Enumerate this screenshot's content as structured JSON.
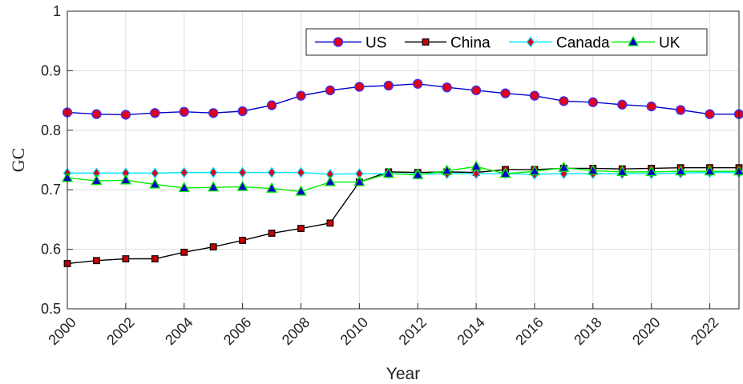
{
  "chart_data": {
    "type": "line",
    "xlabel": "Year",
    "ylabel": "GC",
    "xlim": [
      2000,
      2023
    ],
    "ylim": [
      0.5,
      1.0
    ],
    "xticks": [
      "2000",
      "2002",
      "2004",
      "2006",
      "2008",
      "2010",
      "2012",
      "2014",
      "2016",
      "2018",
      "2020",
      "2022"
    ],
    "yticks": [
      "0.5",
      "0.6",
      "0.7",
      "0.8",
      "0.9",
      "1"
    ],
    "grid": true,
    "legend_position": "top-right",
    "x": [
      2000,
      2001,
      2002,
      2003,
      2004,
      2005,
      2006,
      2007,
      2008,
      2009,
      2010,
      2011,
      2012,
      2013,
      2014,
      2015,
      2016,
      2017,
      2018,
      2019,
      2020,
      2021,
      2022,
      2023
    ],
    "series": [
      {
        "name": "US",
        "line_color": "#0000cc",
        "marker": "circle",
        "marker_fill": "#e0001a",
        "marker_edge": "#3333ff",
        "values": [
          0.83,
          0.827,
          0.826,
          0.829,
          0.831,
          0.829,
          0.832,
          0.842,
          0.858,
          0.867,
          0.873,
          0.875,
          0.878,
          0.872,
          0.867,
          0.862,
          0.858,
          0.849,
          0.847,
          0.843,
          0.84,
          0.834,
          0.827,
          0.827
        ]
      },
      {
        "name": "China",
        "line_color": "#000000",
        "marker": "square",
        "marker_fill": "#cc0000",
        "marker_edge": "#000000",
        "values": [
          0.576,
          0.581,
          0.584,
          0.584,
          0.595,
          0.604,
          0.615,
          0.627,
          0.635,
          0.644,
          0.713,
          0.73,
          0.729,
          0.73,
          0.729,
          0.734,
          0.734,
          0.736,
          0.736,
          0.735,
          0.736,
          0.737,
          0.737,
          0.737
        ]
      },
      {
        "name": "Canada",
        "line_color": "#00e5ff",
        "marker": "diamond",
        "marker_fill": "#e0001a",
        "marker_edge": "#00e5ff",
        "values": [
          0.728,
          0.728,
          0.728,
          0.728,
          0.729,
          0.729,
          0.729,
          0.729,
          0.729,
          0.726,
          0.727,
          0.727,
          0.726,
          0.727,
          0.727,
          0.727,
          0.726,
          0.727,
          0.727,
          0.727,
          0.727,
          0.728,
          0.729,
          0.729
        ]
      },
      {
        "name": "UK",
        "line_color": "#00ee00",
        "marker": "triangle",
        "marker_fill": "#0000cc",
        "marker_edge": "#00ee00",
        "values": [
          0.72,
          0.715,
          0.716,
          0.709,
          0.703,
          0.704,
          0.705,
          0.702,
          0.697,
          0.713,
          0.713,
          0.727,
          0.725,
          0.732,
          0.739,
          0.727,
          0.731,
          0.737,
          0.732,
          0.73,
          0.73,
          0.731,
          0.731,
          0.731
        ]
      }
    ]
  }
}
